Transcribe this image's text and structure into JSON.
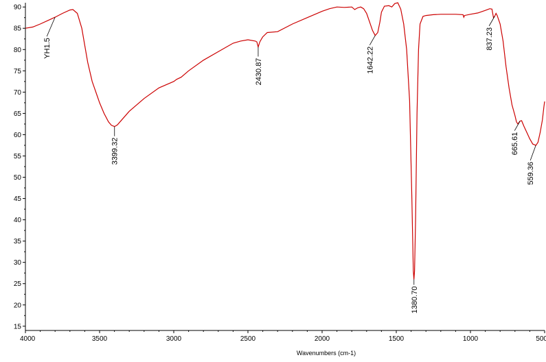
{
  "chart_data": {
    "type": "line",
    "title": "",
    "xlabel": "Wavenumbers (cm-1)",
    "ylabel": "",
    "xlim": [
      4000,
      500
    ],
    "ylim": [
      14,
      91
    ],
    "x_reversed": true,
    "grid": false,
    "line_color": "#cc0000",
    "x_ticks": [
      4000,
      3500,
      3000,
      2500,
      2000,
      1500,
      1000,
      500
    ],
    "x_tick_labels": [
      "4000",
      "3500",
      "3000",
      "2500",
      "2000",
      "1500",
      "1000",
      "500"
    ],
    "y_ticks": [
      15,
      20,
      25,
      30,
      35,
      40,
      45,
      50,
      55,
      60,
      65,
      70,
      75,
      80,
      85,
      90
    ],
    "y_tick_labels": [
      "15",
      "20",
      "25",
      "30",
      "35",
      "40",
      "45",
      "50",
      "55",
      "60",
      "65",
      "70",
      "75",
      "80",
      "85",
      "90"
    ],
    "series": [
      {
        "name": "YH1.5",
        "points": [
          [
            4000,
            85.0
          ],
          [
            3950,
            85.3
          ],
          [
            3900,
            86.0
          ],
          [
            3850,
            86.8
          ],
          [
            3800,
            87.6
          ],
          [
            3750,
            88.5
          ],
          [
            3700,
            89.3
          ],
          [
            3680,
            89.4
          ],
          [
            3650,
            88.5
          ],
          [
            3620,
            85.0
          ],
          [
            3600,
            81.0
          ],
          [
            3580,
            77.0
          ],
          [
            3550,
            72.5
          ],
          [
            3520,
            69.5
          ],
          [
            3500,
            67.5
          ],
          [
            3470,
            65.0
          ],
          [
            3440,
            63.0
          ],
          [
            3420,
            62.2
          ],
          [
            3399,
            61.9
          ],
          [
            3380,
            62.3
          ],
          [
            3350,
            63.5
          ],
          [
            3300,
            65.5
          ],
          [
            3200,
            68.5
          ],
          [
            3100,
            71.0
          ],
          [
            3000,
            72.5
          ],
          [
            2980,
            73.0
          ],
          [
            2950,
            73.5
          ],
          [
            2900,
            75.0
          ],
          [
            2800,
            77.5
          ],
          [
            2700,
            79.5
          ],
          [
            2600,
            81.5
          ],
          [
            2550,
            82.0
          ],
          [
            2500,
            82.3
          ],
          [
            2450,
            82.0
          ],
          [
            2440,
            81.8
          ],
          [
            2431,
            80.6
          ],
          [
            2420,
            81.8
          ],
          [
            2400,
            83.0
          ],
          [
            2370,
            84.0
          ],
          [
            2300,
            84.2
          ],
          [
            2200,
            86.0
          ],
          [
            2100,
            87.5
          ],
          [
            2000,
            89.0
          ],
          [
            1950,
            89.6
          ],
          [
            1900,
            90.0
          ],
          [
            1850,
            89.9
          ],
          [
            1800,
            90.0
          ],
          [
            1780,
            89.4
          ],
          [
            1760,
            89.8
          ],
          [
            1740,
            90.0
          ],
          [
            1720,
            89.6
          ],
          [
            1700,
            88.5
          ],
          [
            1680,
            86.5
          ],
          [
            1660,
            84.5
          ],
          [
            1642,
            83.3
          ],
          [
            1625,
            84.0
          ],
          [
            1610,
            86.5
          ],
          [
            1600,
            88.8
          ],
          [
            1580,
            90.2
          ],
          [
            1550,
            90.3
          ],
          [
            1530,
            90.0
          ],
          [
            1510,
            90.8
          ],
          [
            1490,
            91.0
          ],
          [
            1470,
            89.5
          ],
          [
            1450,
            86.0
          ],
          [
            1430,
            80.0
          ],
          [
            1410,
            68.0
          ],
          [
            1395,
            45.0
          ],
          [
            1385,
            28.0
          ],
          [
            1381,
            26.0
          ],
          [
            1377,
            28.0
          ],
          [
            1370,
            40.0
          ],
          [
            1360,
            65.0
          ],
          [
            1350,
            80.0
          ],
          [
            1340,
            86.0
          ],
          [
            1320,
            87.8
          ],
          [
            1300,
            88.0
          ],
          [
            1250,
            88.2
          ],
          [
            1200,
            88.3
          ],
          [
            1150,
            88.3
          ],
          [
            1100,
            88.3
          ],
          [
            1050,
            88.2
          ],
          [
            1045,
            87.6
          ],
          [
            1040,
            88.0
          ],
          [
            1000,
            88.3
          ],
          [
            950,
            88.6
          ],
          [
            900,
            89.2
          ],
          [
            870,
            89.6
          ],
          [
            855,
            89.5
          ],
          [
            845,
            87.5
          ],
          [
            837,
            87.8
          ],
          [
            828,
            88.5
          ],
          [
            820,
            88.0
          ],
          [
            800,
            86.0
          ],
          [
            780,
            82.0
          ],
          [
            760,
            76.0
          ],
          [
            740,
            71.0
          ],
          [
            720,
            67.0
          ],
          [
            700,
            64.5
          ],
          [
            690,
            63.0
          ],
          [
            680,
            62.5
          ],
          [
            666,
            63.2
          ],
          [
            655,
            63.3
          ],
          [
            640,
            62.0
          ],
          [
            620,
            60.5
          ],
          [
            600,
            59.0
          ],
          [
            580,
            57.8
          ],
          [
            559,
            57.5
          ],
          [
            545,
            58.2
          ],
          [
            530,
            60.5
          ],
          [
            515,
            63.5
          ],
          [
            505,
            66.5
          ],
          [
            500,
            67.8
          ]
        ]
      }
    ],
    "annotations": [
      {
        "text": "YH1.5",
        "x": 3800,
        "y": 87.6
      },
      {
        "text": "3399.32",
        "x": 3399.32,
        "y": 61.9
      },
      {
        "text": "2430.87",
        "x": 2430.87,
        "y": 80.6
      },
      {
        "text": "1642.22",
        "x": 1642.22,
        "y": 83.3
      },
      {
        "text": "1380.70",
        "x": 1380.7,
        "y": 26.0
      },
      {
        "text": "837.23",
        "x": 837.23,
        "y": 87.8
      },
      {
        "text": "665.61",
        "x": 665.61,
        "y": 63.2
      },
      {
        "text": "559.36",
        "x": 559.36,
        "y": 57.5
      }
    ]
  }
}
